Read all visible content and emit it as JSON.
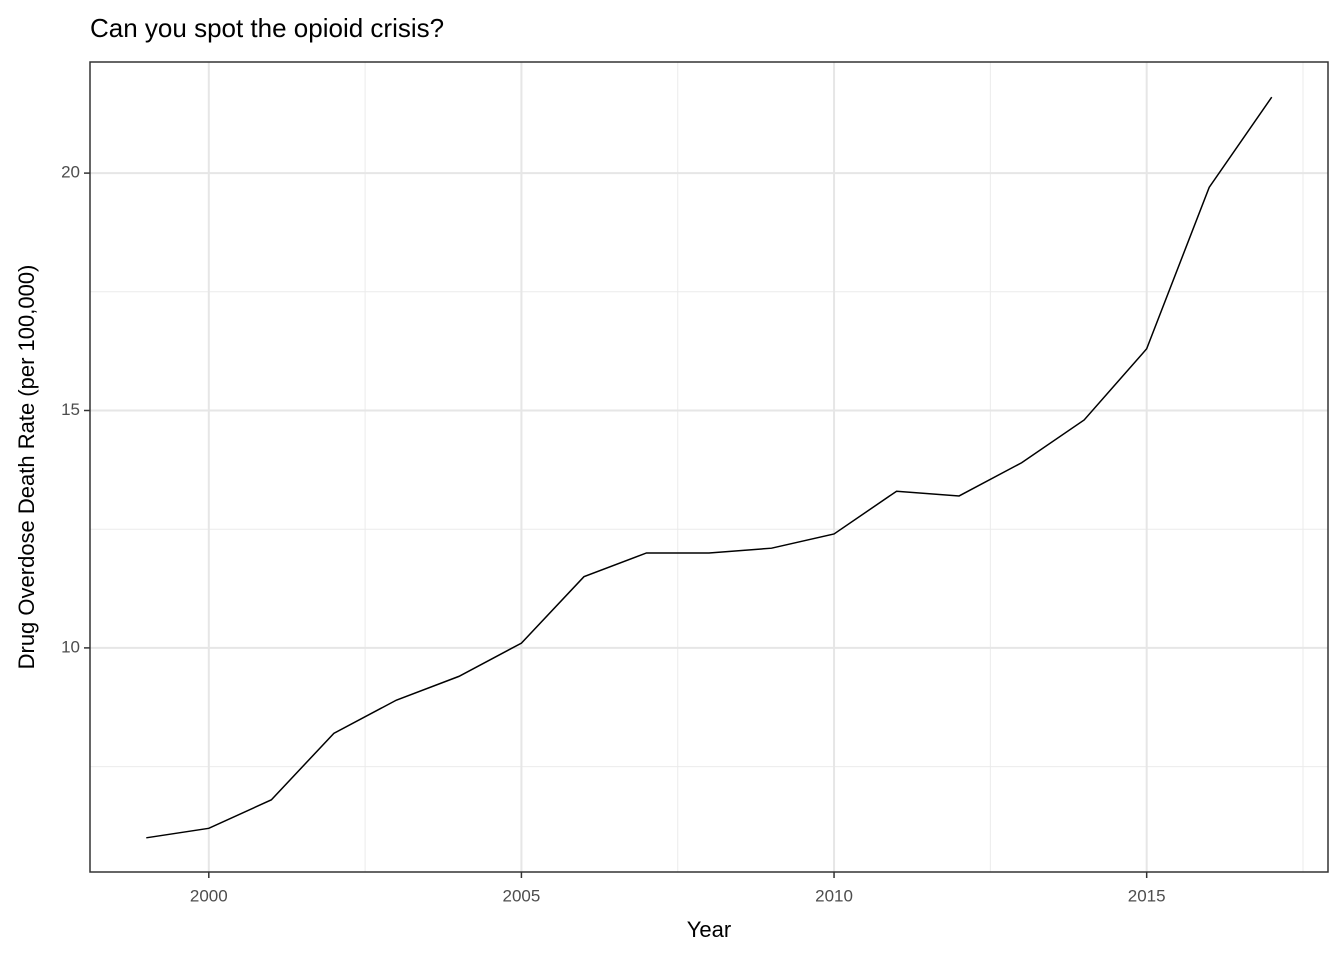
{
  "chart_data": {
    "type": "line",
    "title": "Can you spot the opioid crisis?",
    "x_label": "Year",
    "y_label": "Drug Overdose Death Rate (per 100,000)",
    "x": [
      1999,
      2000,
      2001,
      2002,
      2003,
      2004,
      2005,
      2006,
      2007,
      2008,
      2009,
      2010,
      2011,
      2012,
      2013,
      2014,
      2015,
      2016,
      2017
    ],
    "series": [
      {
        "name": "Death rate",
        "color": "#000000",
        "values": [
          6.0,
          6.2,
          6.8,
          8.2,
          8.9,
          9.4,
          10.1,
          11.5,
          12.0,
          12.0,
          12.1,
          12.4,
          13.3,
          13.2,
          13.9,
          14.8,
          16.3,
          19.7,
          21.6
        ]
      }
    ],
    "xlim": [
      1998.1,
      2017.9
    ],
    "xticks": [
      2000,
      2005,
      2010,
      2015
    ],
    "x_minor_ticks": [
      2002.5,
      2007.5,
      2012.5,
      2017.5
    ],
    "ylim": [
      5.28,
      22.34
    ],
    "yticks": [
      10,
      15,
      20
    ],
    "y_minor_ticks": [
      7.5,
      12.5,
      17.5
    ],
    "grid": true
  }
}
